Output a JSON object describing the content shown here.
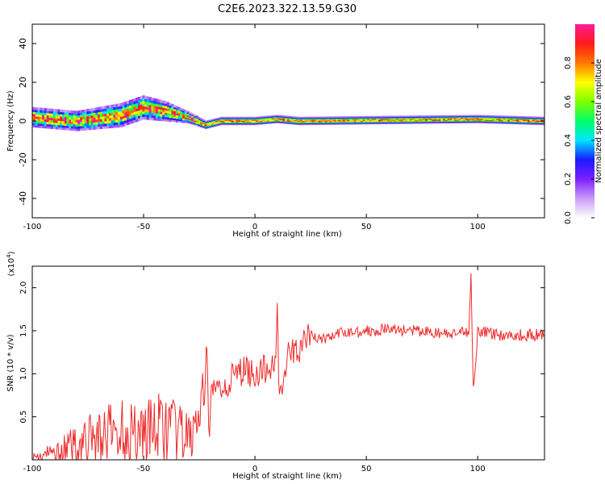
{
  "title": "C2E6.2023.322.13.59.G30",
  "colors": {
    "snr_line": "#ee2a2a",
    "axis": "#000000",
    "background": "#ffffff"
  },
  "chart_data": [
    {
      "type": "heatmap",
      "xlabel": "Height of straight line (km)",
      "ylabel": "Frequency (Hz)",
      "xlim": [
        -100,
        130
      ],
      "ylim": [
        -50,
        50
      ],
      "x_ticks": [
        "-100",
        "-50",
        "0",
        "50",
        "100"
      ],
      "y_ticks": [
        "40",
        "20",
        "0",
        "-20",
        "-40"
      ],
      "colorbar": {
        "label": "Normalized spectral amplitude",
        "range": [
          0.0,
          1.0
        ],
        "ticks": [
          "0.0",
          "0.2",
          "0.4",
          "0.6",
          "0.8"
        ],
        "colormap": [
          "#ffffff",
          "#c99cf7",
          "#7d1fff",
          "#1a1aff",
          "#00e5ff",
          "#00ff66",
          "#7fff00",
          "#ffff00",
          "#ff7700",
          "#ff1a1a",
          "#ff1a99"
        ]
      },
      "ridge": [
        {
          "x": -100,
          "f": 2,
          "spread": 5
        },
        {
          "x": -80,
          "f": 0,
          "spread": 5
        },
        {
          "x": -60,
          "f": 3,
          "spread": 6
        },
        {
          "x": -50,
          "f": 7,
          "spread": 6
        },
        {
          "x": -40,
          "f": 5,
          "spread": 5
        },
        {
          "x": -30,
          "f": 2,
          "spread": 3
        },
        {
          "x": -22,
          "f": -2,
          "spread": 2
        },
        {
          "x": -15,
          "f": 0,
          "spread": 2
        },
        {
          "x": 0,
          "f": 0,
          "spread": 2
        },
        {
          "x": 10,
          "f": 1,
          "spread": 2
        },
        {
          "x": 20,
          "f": 0,
          "spread": 2
        },
        {
          "x": 100,
          "f": 1,
          "spread": 2
        },
        {
          "x": 130,
          "f": 0,
          "spread": 2
        }
      ]
    },
    {
      "type": "line",
      "xlabel": "Height of straight line (km)",
      "ylabel": "SNR (10 * v/v)",
      "y_multiplier_label": "(x10",
      "y_multiplier_exp": "4",
      "xlim": [
        -100,
        130
      ],
      "ylim": [
        0,
        2.25
      ],
      "y_unit": "x10^4",
      "x_ticks": [
        "-100",
        "-50",
        "0",
        "50",
        "100"
      ],
      "y_ticks": [
        "0.5",
        "1.0",
        "1.5",
        "2.0"
      ],
      "series": [
        {
          "x": [
            -100,
            -90,
            -80,
            -70,
            -60,
            -50,
            -40,
            -30,
            -25,
            -20,
            -15,
            -10,
            -5,
            0,
            5,
            9,
            10,
            11,
            15,
            20,
            25,
            30,
            40,
            50,
            60,
            70,
            80,
            90,
            96,
            97,
            98,
            100,
            110,
            120,
            130
          ],
          "y": [
            0.02,
            0.08,
            0.18,
            0.28,
            0.33,
            0.35,
            0.37,
            0.25,
            0.45,
            0.75,
            0.85,
            0.95,
            1.05,
            1.0,
            1.05,
            1.1,
            1.75,
            0.75,
            1.2,
            1.3,
            1.45,
            1.4,
            1.48,
            1.5,
            1.52,
            1.5,
            1.48,
            1.45,
            1.5,
            2.2,
            0.8,
            1.5,
            1.45,
            1.45,
            1.45
          ]
        }
      ]
    }
  ]
}
